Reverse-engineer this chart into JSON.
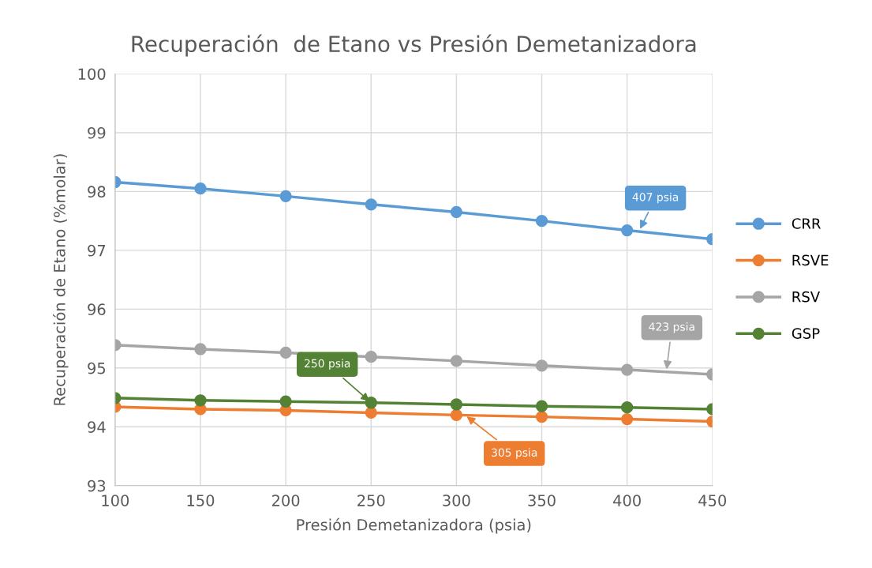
{
  "chart_data": {
    "type": "line",
    "title": "Recuperación  de Etano vs Presión Demetanizadora",
    "xlabel": "Presión Demetanizadora (psia)",
    "ylabel": "Recuperación de Etano (%molar)",
    "x": [
      100,
      150,
      200,
      250,
      300,
      350,
      400,
      450
    ],
    "series": [
      {
        "name": "CRR",
        "color": "#5b9bd5",
        "values": [
          98.16,
          98.05,
          97.92,
          97.78,
          97.65,
          97.5,
          97.34,
          97.19
        ]
      },
      {
        "name": "RSVE",
        "color": "#ed7d31",
        "values": [
          94.34,
          94.3,
          94.28,
          94.24,
          94.2,
          94.17,
          94.13,
          94.09
        ]
      },
      {
        "name": "RSV",
        "color": "#a5a5a5",
        "values": [
          95.39,
          95.32,
          95.26,
          95.19,
          95.12,
          95.04,
          94.97,
          94.89
        ]
      },
      {
        "name": "GSP",
        "color": "#548235",
        "values": [
          94.49,
          94.45,
          94.43,
          94.41,
          94.38,
          94.35,
          94.33,
          94.3
        ]
      }
    ],
    "xlim": [
      100,
      450
    ],
    "ylim": [
      93,
      100
    ],
    "xticks": [
      100,
      150,
      200,
      250,
      300,
      350,
      400,
      450
    ],
    "yticks": [
      93,
      94,
      95,
      96,
      97,
      98,
      99,
      100
    ],
    "grid": true,
    "legend": "right",
    "marker": "circle",
    "line_style": "solid",
    "annotations": [
      {
        "text": "407 psia",
        "x": 407,
        "y": 97.33
      },
      {
        "text": "423 psia",
        "x": 423,
        "y": 94.94
      },
      {
        "text": "250 psia",
        "x": 250,
        "y": 94.41
      },
      {
        "text": "305 psia",
        "x": 305,
        "y": 94.2
      }
    ]
  }
}
